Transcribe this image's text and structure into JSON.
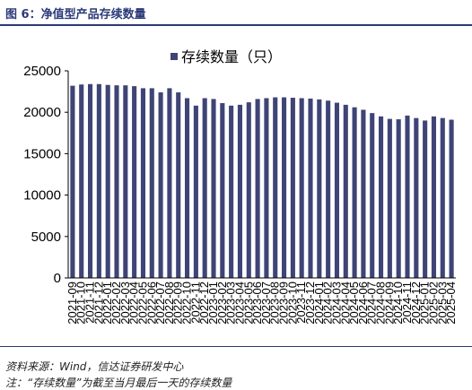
{
  "figure": {
    "title": "图 6：净值型产品存续数量",
    "source": "资料来源：Wind，信达证券研发中心",
    "note": "注：“存续数量”为截至当月最后一天的存续数量"
  },
  "colors": {
    "bar": "#3f4476",
    "accent": "#2b3a78",
    "text": "#000000"
  },
  "chart_data": {
    "type": "bar",
    "legend_label": "存续数量（只）",
    "legend_position": "top-center",
    "grid": false,
    "ylim": [
      0,
      25000
    ],
    "yticks": [
      0,
      5000,
      10000,
      15000,
      20000,
      25000
    ],
    "categories": [
      "2021-09",
      "2021-10",
      "2021-11",
      "2021-12",
      "2022-01",
      "2022-02",
      "2022-03",
      "2022-04",
      "2022-05",
      "2022-06",
      "2022-07",
      "2022-08",
      "2022-09",
      "2022-10",
      "2022-11",
      "2022-12",
      "2023-01",
      "2023-02",
      "2023-03",
      "2023-04",
      "2023-05",
      "2023-06",
      "2023-07",
      "2023-08",
      "2023-09",
      "2023-10",
      "2023-11",
      "2023-12",
      "2024-01",
      "2024-02",
      "2024-03",
      "2024-04",
      "2024-05",
      "2024-06",
      "2024-07",
      "2024-08",
      "2024-09",
      "2024-10",
      "2024-11",
      "2024-12",
      "2025-01",
      "2025-02",
      "2025-03",
      "2025-04"
    ],
    "values": [
      23200,
      23350,
      23400,
      23400,
      23300,
      23250,
      23250,
      23150,
      22900,
      22900,
      22400,
      22900,
      22400,
      21700,
      20800,
      21700,
      21600,
      21100,
      20800,
      20900,
      21200,
      21600,
      21700,
      21800,
      21800,
      21750,
      21700,
      21650,
      21550,
      21400,
      21150,
      20900,
      20600,
      20300,
      19900,
      19500,
      19200,
      19150,
      19600,
      19300,
      19000,
      19500,
      19300,
      19100
    ]
  }
}
